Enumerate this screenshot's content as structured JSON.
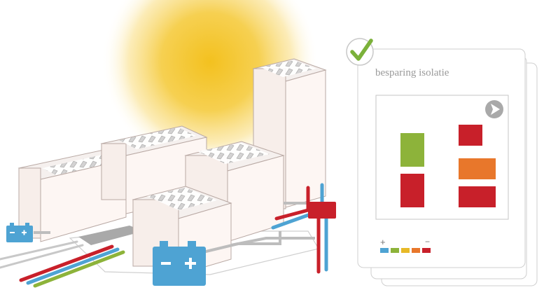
{
  "card": {
    "title": "besparing isolatie",
    "status": "checked",
    "legend": {
      "plus": "+",
      "minus": "−"
    }
  },
  "chart_data": {
    "type": "bar",
    "columns": [
      {
        "segments": [
          "green",
          "red"
        ]
      },
      {
        "segments": [
          "red",
          "orange",
          "red"
        ]
      }
    ],
    "legend_swatches": [
      "blue",
      "green",
      "yellow",
      "orange",
      "red"
    ]
  },
  "colors": {
    "red": "#c8202a",
    "green": "#8db33a",
    "orange": "#e8772b",
    "yellow": "#e7b928",
    "blue": "#4ea3d3",
    "check": "#7bb13a",
    "sun": "#f5c83c",
    "building": "#fdf5f2",
    "building_line": "#b9a9a4",
    "panel": "#c9c9c9",
    "pipe_gray": "#b8b8b8"
  },
  "icons": {
    "check": "check-icon",
    "cursor": "cursor-arrow-icon",
    "battery": "battery-icon",
    "sun": "sun-icon",
    "meter": "meter-box-icon"
  }
}
